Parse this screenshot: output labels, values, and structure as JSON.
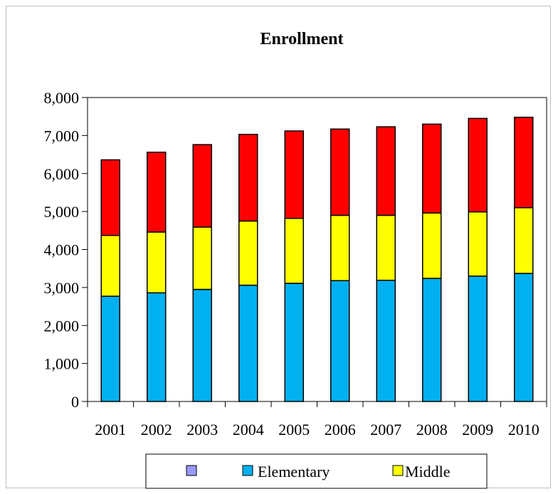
{
  "chart_data": {
    "type": "bar",
    "stacked": true,
    "title": "Enrollment",
    "categories": [
      "2001",
      "2002",
      "2003",
      "2004",
      "2005",
      "2006",
      "2007",
      "2008",
      "2009",
      "2010"
    ],
    "series": [
      {
        "name": "Elementary",
        "color": "#00b0f0",
        "values": [
          2770,
          2860,
          2950,
          3060,
          3110,
          3180,
          3190,
          3240,
          3300,
          3370
        ]
      },
      {
        "name": "Middle",
        "color": "#ffff00",
        "values": [
          1600,
          1600,
          1640,
          1690,
          1710,
          1720,
          1710,
          1720,
          1690,
          1730
        ]
      },
      {
        "name": "",
        "color": "#ff0000",
        "values": [
          1990,
          2100,
          2170,
          2280,
          2300,
          2270,
          2330,
          2340,
          2460,
          2380
        ]
      }
    ],
    "legend_entries": [
      {
        "name": "",
        "color": "#9999ff"
      },
      {
        "name": "Elementary",
        "color": "#00b0f0"
      },
      {
        "name": "Middle",
        "color": "#ffff00"
      }
    ],
    "ylim": [
      0,
      8000
    ],
    "yticks": [
      "0",
      "1,000",
      "2,000",
      "3,000",
      "4,000",
      "5,000",
      "6,000",
      "7,000",
      "8,000"
    ],
    "ytick_values": [
      0,
      1000,
      2000,
      3000,
      4000,
      5000,
      6000,
      7000,
      8000
    ],
    "legend_position": "bottom",
    "grid": false
  }
}
